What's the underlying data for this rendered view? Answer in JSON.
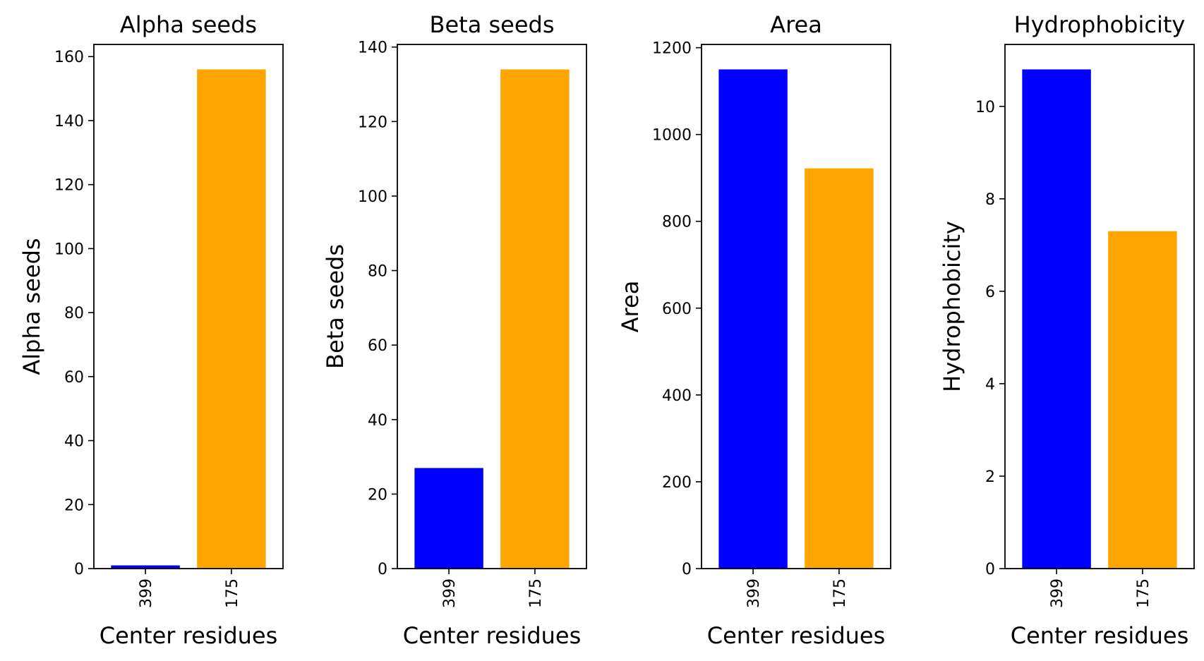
{
  "chart_data": [
    {
      "type": "bar",
      "title": "Alpha seeds",
      "xlabel": "Center residues",
      "ylabel": "Alpha seeds",
      "categories": [
        "399",
        "175"
      ],
      "values": [
        1,
        156
      ],
      "colors": [
        "#0000ff",
        "#ffa500"
      ],
      "ylim": [
        0,
        163.8
      ],
      "yticks": [
        0,
        20,
        40,
        60,
        80,
        100,
        120,
        140,
        160
      ],
      "grid": false
    },
    {
      "type": "bar",
      "title": "Beta seeds",
      "xlabel": "Center residues",
      "ylabel": "Beta seeds",
      "categories": [
        "399",
        "175"
      ],
      "values": [
        27,
        134
      ],
      "colors": [
        "#0000ff",
        "#ffa500"
      ],
      "ylim": [
        0,
        140.7
      ],
      "yticks": [
        0,
        20,
        40,
        60,
        80,
        100,
        120,
        140
      ],
      "grid": false
    },
    {
      "type": "bar",
      "title": "Area",
      "xlabel": "Center residues",
      "ylabel": "Area",
      "categories": [
        "399",
        "175"
      ],
      "values": [
        1150,
        922
      ],
      "colors": [
        "#0000ff",
        "#ffa500"
      ],
      "ylim": [
        0,
        1207.5
      ],
      "yticks": [
        0,
        200,
        400,
        600,
        800,
        1000,
        1200
      ],
      "grid": false
    },
    {
      "type": "bar",
      "title": "Hydrophobicity",
      "xlabel": "Center residues",
      "ylabel": "Hydrophobicity",
      "categories": [
        "399",
        "175"
      ],
      "values": [
        10.8,
        7.3
      ],
      "colors": [
        "#0000ff",
        "#ffa500"
      ],
      "ylim": [
        0,
        11.34
      ],
      "yticks": [
        0,
        2,
        4,
        6,
        8,
        10
      ],
      "grid": false
    }
  ]
}
